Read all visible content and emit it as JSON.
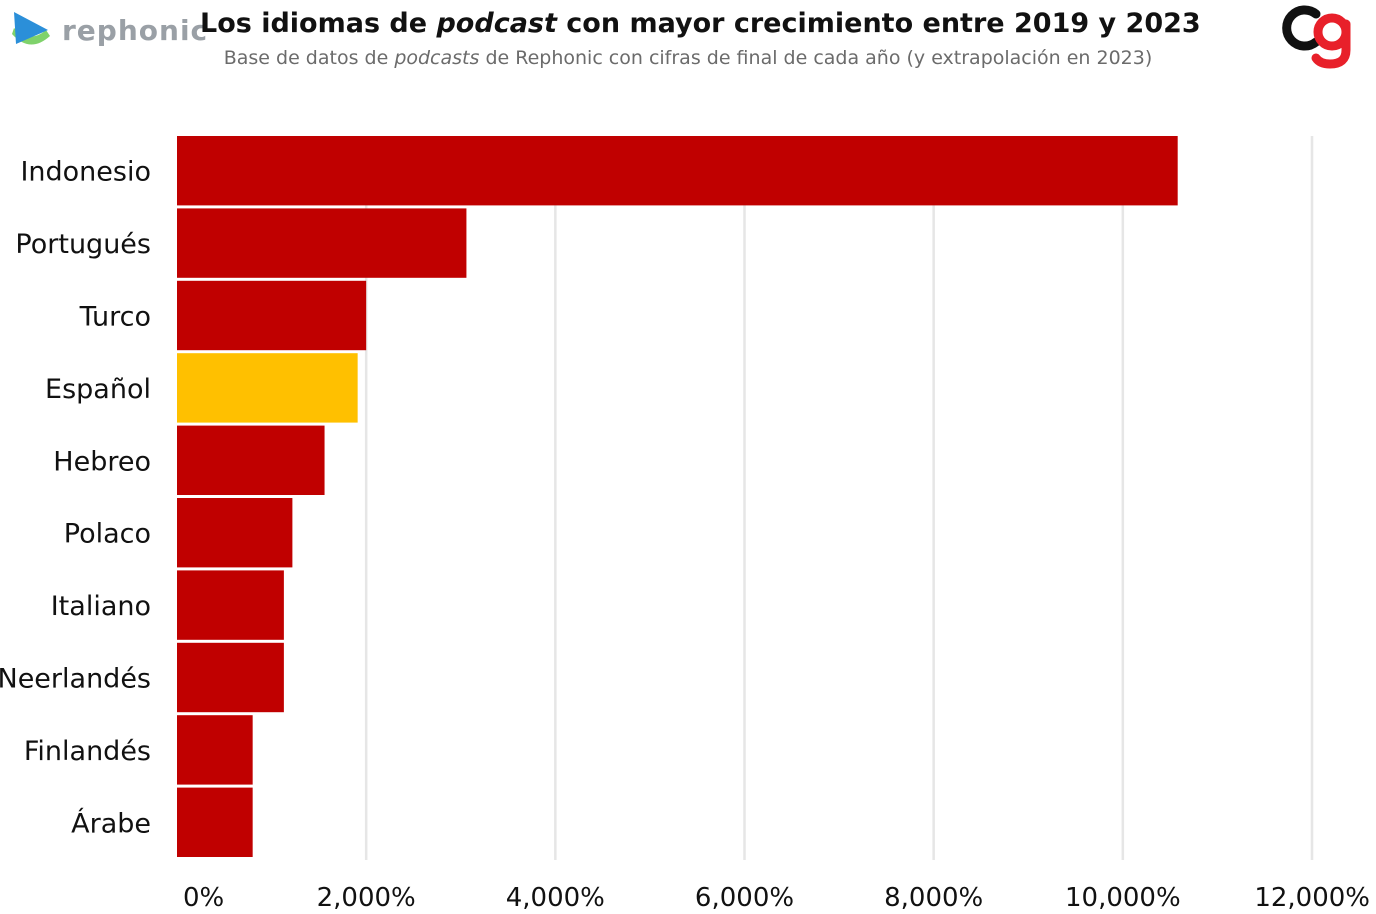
{
  "brand": {
    "name": "rephonic"
  },
  "header": {
    "title_pre": "Los idiomas de ",
    "title_em": "podcast",
    "title_post": " con mayor crecimiento entre 2019 y 2023",
    "subtitle_pre": "Base de datos de ",
    "subtitle_em": "podcasts",
    "subtitle_post": " de Rephonic con cifras de final de cada año (y extrapolación en 2023)"
  },
  "colors": {
    "bar": "#c00000",
    "highlight": "#ffc000",
    "grid": "#e6e6e6",
    "brand_blue": "#2b8fd9",
    "brand_green": "#7fd26b",
    "logo_red": "#e8202a",
    "logo_dark": "#111111"
  },
  "icons": {
    "brand": "rephonic-logo-icon",
    "corner": "corner-logo-icon"
  },
  "chart_data": {
    "type": "bar",
    "orientation": "horizontal",
    "title": "Los idiomas de podcast con mayor crecimiento entre 2019 y 2023",
    "subtitle": "Base de datos de podcasts de Rephonic con cifras de final de cada año (y extrapolación en 2023)",
    "categories": [
      "Indonesio",
      "Portugués",
      "Turco",
      "Español",
      "Hebreo",
      "Polaco",
      "Italiano",
      "Neerlandés",
      "Finlandés",
      "Árabe"
    ],
    "values": [
      10580,
      3060,
      2000,
      1910,
      1560,
      1220,
      1130,
      1130,
      800,
      800
    ],
    "highlight": "Español",
    "xlim": [
      0,
      12000
    ],
    "xticks": [
      0,
      2000,
      4000,
      6000,
      8000,
      10000,
      12000
    ],
    "xtick_labels": [
      "0%",
      "2,000%",
      "4,000%",
      "6,000%",
      "8,000%",
      "10,000%",
      "12,000%"
    ],
    "grid": true,
    "legend": "none"
  }
}
